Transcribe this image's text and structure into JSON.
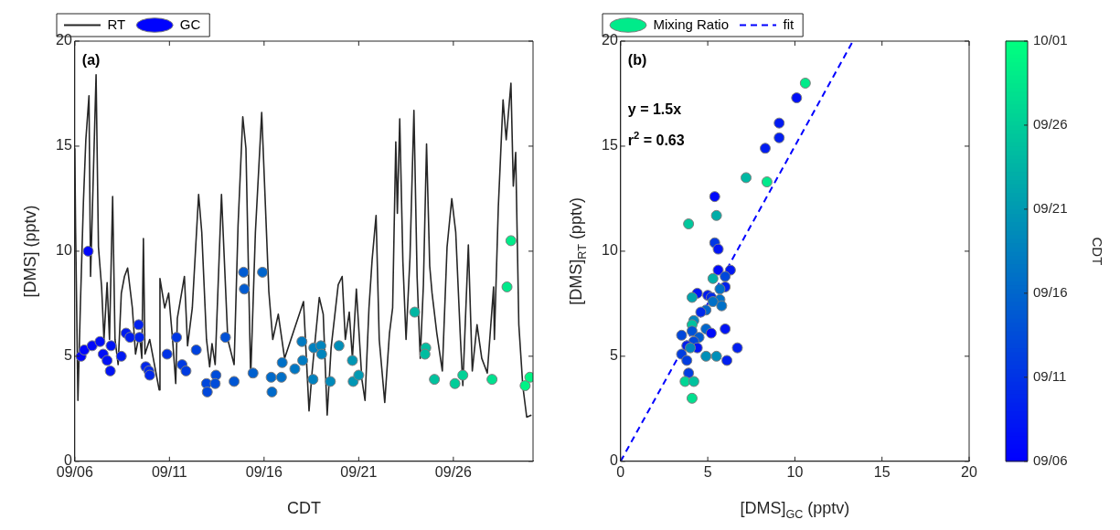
{
  "chart_data": [
    {
      "type": "line",
      "xlabel": "CDT",
      "ylabel": "[DMS] (pptv)",
      "legend": "top left",
      "xlim": [
        "--09-06",
        "--09-30T05:00"
      ],
      "xticks": [
        {
          "value": "--09-06",
          "label": "09/06"
        },
        {
          "value": "--09-11",
          "label": "09/11"
        },
        {
          "value": "--09-16",
          "label": "09/16"
        },
        {
          "value": "--09-21",
          "label": "09/21"
        },
        {
          "value": "--09-26",
          "label": "09/26"
        }
      ],
      "ylim": [
        0,
        20
      ],
      "yticks": [
        0,
        5,
        10,
        15,
        20
      ],
      "annotations": [
        "(a)"
      ],
      "series": [
        {
          "name": "RT",
          "color": "#262626",
          "x": [
            "--09-06T00:00",
            "--09-06T01:00",
            "--09-06T04:00",
            "--09-06T07:00",
            "--09-06T11:00",
            "--09-06T14:00",
            "--09-06T18:00",
            "--09-06T20:00",
            "--09-07T03:00",
            "--09-07T06:00",
            "--09-07T10:00",
            "--09-07T13:00",
            "--09-07T17:00",
            "--09-07T20:00",
            "--09-08T00:00",
            "--09-08T03:00",
            "--09-08T07:00",
            "--09-08T11:00",
            "--09-08T15:00",
            "--09-08T19:00",
            "--09-09T01:00",
            "--09-09T05:00",
            "--09-09T10:00",
            "--09-09T13:00",
            "--09-09T15:00",
            "--09-09T17:00",
            "--09-09T23:00",
            "--09-10T11:00",
            "--09-10T12:00",
            "--09-10T18:00",
            "--09-10T23:00",
            "--09-11T04:00",
            "--09-11T08:00",
            "--09-11T10:00",
            "--09-11T19:00",
            "--09-11T23:00",
            "--09-12T05:00",
            "--09-12T13:00",
            "--09-12T17:00",
            "--09-12T23:00",
            "--09-13T03:00",
            "--09-13T06:00",
            "--09-13T10:00",
            "--09-13T18:00",
            "--09-14T02:00",
            "--09-14T10:00",
            "--09-14T15:00",
            "--09-14T21:00",
            "--09-15T01:00",
            "--09-15T07:00",
            "--09-15T13:00",
            "--09-15T21:00",
            "--09-16T06:00",
            "--09-16T11:00",
            "--09-16T18:00",
            "--09-17T02:00",
            "--09-17T10:00",
            "--09-18T02:00",
            "--09-18T09:00",
            "--09-18T13:00",
            "--09-18T22:00",
            "--09-19T03:00",
            "--09-19T08:00",
            "--09-19T13:00",
            "--09-19T22:00",
            "--09-20T03:00",
            "--09-20T07:00",
            "--09-20T12:00",
            "--09-20T16:00",
            "--09-20T21:00",
            "--09-21T04:00",
            "--09-21T08:00",
            "--09-21T13:00",
            "--09-21T17:00",
            "--09-21T22:00",
            "--09-22T02:00",
            "--09-22T09:00",
            "--09-22T15:00",
            "--09-22T19:00",
            "--09-22T23:00",
            "--09-23T01:00",
            "--09-23T04:00",
            "--09-23T08:00",
            "--09-23T12:00",
            "--09-23T17:00",
            "--09-23T22:00",
            "--09-24T02:00",
            "--09-24T06:00",
            "--09-24T10:00",
            "--09-24T14:00",
            "--09-24T18:00",
            "--09-24T21:00",
            "--09-25T03:00",
            "--09-25T10:00",
            "--09-25T16:00",
            "--09-25T22:00",
            "--09-26T03:00",
            "--09-26T09:00",
            "--09-26T12:00",
            "--09-26T19:00",
            "--09-27T00:00",
            "--09-27T06:00",
            "--09-27T12:00",
            "--09-27T19:00",
            "--09-28T03:00",
            "--09-28T04:00",
            "--09-28T09:00",
            "--09-28T15:00",
            "--09-28T19:00",
            "--09-29T01:00",
            "--09-29T04:00",
            "--09-29T07:00",
            "--09-29T11:00",
            "--09-29T16:00",
            "--09-29T21:00",
            "--09-30T03:00"
          ],
          "values": [
            14.9,
            11.1,
            2.9,
            7.3,
            12.4,
            15.3,
            17.4,
            8.8,
            18.4,
            10.2,
            8.3,
            5.8,
            8.5,
            5.8,
            12.6,
            5.8,
            4.6,
            8.0,
            8.8,
            9.2,
            7.3,
            5.1,
            6.1,
            4.9,
            10.6,
            5.1,
            5.8,
            3.4,
            8.7,
            7.3,
            8.0,
            5.8,
            3.7,
            6.8,
            8.8,
            5.5,
            7.3,
            12.7,
            10.9,
            5.8,
            4.5,
            5.6,
            4.6,
            12.7,
            5.8,
            4.6,
            11.2,
            16.4,
            14.9,
            4.0,
            10.9,
            16.6,
            8.1,
            5.8,
            7.0,
            4.9,
            5.8,
            7.6,
            2.4,
            4.3,
            7.8,
            7.0,
            2.2,
            5.4,
            8.4,
            8.8,
            5.8,
            7.1,
            4.9,
            8.2,
            3.9,
            2.9,
            7.3,
            9.6,
            11.7,
            5.8,
            2.8,
            6.1,
            7.3,
            15.2,
            11.8,
            16.3,
            9.5,
            5.8,
            9.7,
            16.7,
            8.8,
            4.9,
            8.4,
            15.1,
            9.3,
            8.0,
            6.1,
            4.3,
            10.2,
            12.5,
            10.9,
            5.8,
            3.6,
            10.3,
            4.3,
            6.5,
            4.9,
            4.2,
            8.3,
            5.8,
            12.1,
            17.2,
            15.3,
            18.0,
            13.1,
            14.7,
            6.5,
            3.6,
            2.1,
            2.2
          ]
        },
        {
          "name": "GC",
          "type": "scatter",
          "marker": "circle",
          "x": [
            "--09-06T08:00",
            "--09-06T12:00",
            "--09-06T17:00",
            "--09-06T22:00",
            "--09-07T08:00",
            "--09-07T12:00",
            "--09-07T17:00",
            "--09-07T22:00",
            "--09-07T21:00",
            "--09-08T11:00",
            "--09-08T17:00",
            "--09-08T22:00",
            "--09-09T09:00",
            "--09-09T10:00",
            "--09-09T18:00",
            "--09-09T22:00",
            "--09-09T23:00",
            "--09-10T21:00",
            "--09-11T09:00",
            "--09-11T16:00",
            "--09-11T21:00",
            "--09-12T10:00",
            "--09-12T23:00",
            "--09-13T00:00",
            "--09-13T11:00",
            "--09-13T10:00",
            "--09-13T23:00",
            "--09-14T10:00",
            "--09-14T22:00",
            "--09-14T23:00",
            "--09-15T10:00",
            "--09-15T22:00",
            "--09-16T09:00",
            "--09-16T10:00",
            "--09-16T22:00",
            "--09-16T23:00",
            "--09-17T15:00",
            "--09-18T00:00",
            "--09-18T01:00",
            "--09-18T15:00",
            "--09-19T00:00",
            "--09-19T01:00",
            "--09-18T14:00",
            "--09-19T12:00",
            "--09-19T23:00",
            "--09-20T16:00",
            "--09-20T17:00",
            "--09-21T00:00",
            "--09-23T23:00",
            "--09-24T13:00",
            "--09-24T12:00",
            "--09-25T00:00",
            "--09-26T02:00",
            "--09-26T12:00",
            "--09-28T01:00",
            "--09-28T20:00",
            "--09-29T01:00",
            "--09-29T19:00",
            "--09-30T01:00"
          ],
          "values": [
            5.0,
            5.3,
            10.0,
            5.5,
            5.7,
            5.1,
            4.8,
            5.5,
            4.3,
            5.0,
            6.1,
            5.9,
            6.5,
            5.9,
            4.5,
            4.3,
            4.1,
            5.1,
            5.9,
            4.6,
            4.3,
            5.3,
            3.7,
            3.3,
            4.1,
            3.7,
            5.9,
            3.8,
            9.0,
            8.2,
            4.2,
            9.0,
            4.0,
            3.3,
            4.0,
            4.7,
            4.4,
            5.7,
            4.8,
            5.4,
            5.5,
            5.1,
            3.9,
            3.8,
            5.5,
            4.8,
            3.8,
            4.1,
            7.1,
            5.4,
            5.1,
            3.9,
            3.7,
            4.1,
            3.9,
            8.3,
            10.5,
            3.6,
            4.0
          ],
          "colors": [
            "#0003fd",
            "#0005fc",
            "#0007fb",
            "#0009fa",
            "#000ef8",
            "#000ff7",
            "#0011f6",
            "#0014f5",
            "#0013f5",
            "#0019f2",
            "#001cf1",
            "#001ef0",
            "#0022ee",
            "#0023ee",
            "#0026ec",
            "#0028eb",
            "#0029eb",
            "#0032e6",
            "#0037e4",
            "#003ae2",
            "#003ce1",
            "#0042de",
            "#0047dc",
            "#0047db",
            "#004cd9",
            "#004cd9",
            "#0051d6",
            "#0056d4",
            "#005bd2",
            "#005bd1",
            "#0060cf",
            "#0065cc",
            "#006aca",
            "#006aca",
            "#006fc7",
            "#0070c7",
            "#0077c4",
            "#007ac2",
            "#007bc2",
            "#0081bf",
            "#0085bd",
            "#0085bd",
            "#0081bf",
            "#008aba",
            "#008eb8",
            "#0096b4",
            "#0096b4",
            "#0099b2",
            "#00b7a3",
            "#00bda0",
            "#00bda0",
            "#00c29e",
            "#00cd99",
            "#00d196",
            "#00e18f",
            "#00e98b",
            "#00eb89",
            "#00f386",
            "#00f584"
          ]
        }
      ]
    },
    {
      "type": "scatter",
      "xlabel": "[DMS]$_{GC}$ (pptv)",
      "ylabel": "[DMS]$_{RT}$ (pptv)",
      "clabel": "CDT",
      "legend": "top left",
      "xlim": [
        0,
        20
      ],
      "xticks": [
        0,
        5,
        10,
        15,
        20
      ],
      "ylim": [
        0,
        20
      ],
      "yticks": [
        0,
        5,
        10,
        15,
        20
      ],
      "clim": [
        "--09-06",
        "--10-01"
      ],
      "cticks": [
        {
          "value": "--09-06",
          "label": "09/06"
        },
        {
          "value": "--09-11",
          "label": "09/11"
        },
        {
          "value": "--09-16",
          "label": "09/16"
        },
        {
          "value": "--09-21",
          "label": "09/21"
        },
        {
          "value": "--09-26",
          "label": "09/26"
        },
        {
          "value": "--10-01",
          "label": "10/01"
        }
      ],
      "annotations": [
        "(b)",
        "y = 1.5x",
        "r$^{2}$ = 0.63"
      ],
      "series": [
        {
          "name": "Mixing Ratio",
          "marker": "circle",
          "x": [
            10.6,
            10.1,
            9.1,
            9.1,
            8.3,
            7.2,
            8.4,
            5.4,
            5.5,
            3.9,
            5.4,
            5.6,
            5.6,
            6.3,
            6.0,
            5.3,
            6.0,
            5.7,
            4.4,
            5.0,
            5.2,
            4.1,
            5.7,
            5.3,
            5.8,
            4.9,
            4.6,
            4.2,
            4.1,
            3.5,
            4.1,
            4.9,
            5.2,
            6.0,
            4.5,
            4.2,
            3.8,
            4.4,
            4.0,
            3.5,
            6.7,
            3.8,
            4.9,
            5.5,
            6.1,
            3.9,
            3.7,
            4.2,
            4.1
          ],
          "values": [
            18.0,
            17.3,
            16.1,
            15.4,
            14.9,
            13.5,
            13.3,
            12.6,
            11.7,
            11.3,
            10.4,
            10.1,
            9.1,
            9.1,
            8.8,
            8.7,
            8.3,
            8.2,
            8.0,
            7.9,
            7.8,
            7.8,
            7.7,
            7.6,
            7.4,
            7.2,
            7.1,
            6.7,
            6.5,
            6.0,
            6.2,
            6.3,
            6.1,
            6.3,
            5.9,
            5.7,
            5.5,
            5.4,
            5.4,
            5.1,
            5.4,
            4.8,
            5.0,
            5.0,
            4.8,
            4.2,
            3.8,
            3.8,
            3.0
          ],
          "colors": [
            "#00eb8a",
            "#000ff7",
            "#001af2",
            "#001ef0",
            "#001cf1",
            "#00b8a3",
            "#00e98b",
            "#000afa",
            "#00ada8",
            "#00c79c",
            "#0038e3",
            "#0014f5",
            "#000afa",
            "#0017f3",
            "#0047db",
            "#00ada8",
            "#001ff0",
            "#0070c7",
            "#0014f5",
            "#001af2",
            "#0029eb",
            "#00a3ad",
            "#0070c7",
            "#0070c7",
            "#0070c7",
            "#0066cc",
            "#0029eb",
            "#0085bd",
            "#00c29e",
            "#0047db",
            "#0052d6",
            "#0066cc",
            "#000afa",
            "#0014f5",
            "#005cd1",
            "#0047db",
            "#001ff0",
            "#0014f5",
            "#0085bd",
            "#003de0",
            "#001ff0",
            "#003de0",
            "#008fb8",
            "#008fb8",
            "#001ff0",
            "#003de0",
            "#00d694",
            "#00c29e",
            "#00e08f"
          ]
        },
        {
          "name": "fit",
          "type": "line",
          "color": "#0000ff",
          "line_style": "dashed",
          "x": [
            0,
            13.33
          ],
          "values": [
            0,
            20
          ]
        }
      ]
    }
  ]
}
